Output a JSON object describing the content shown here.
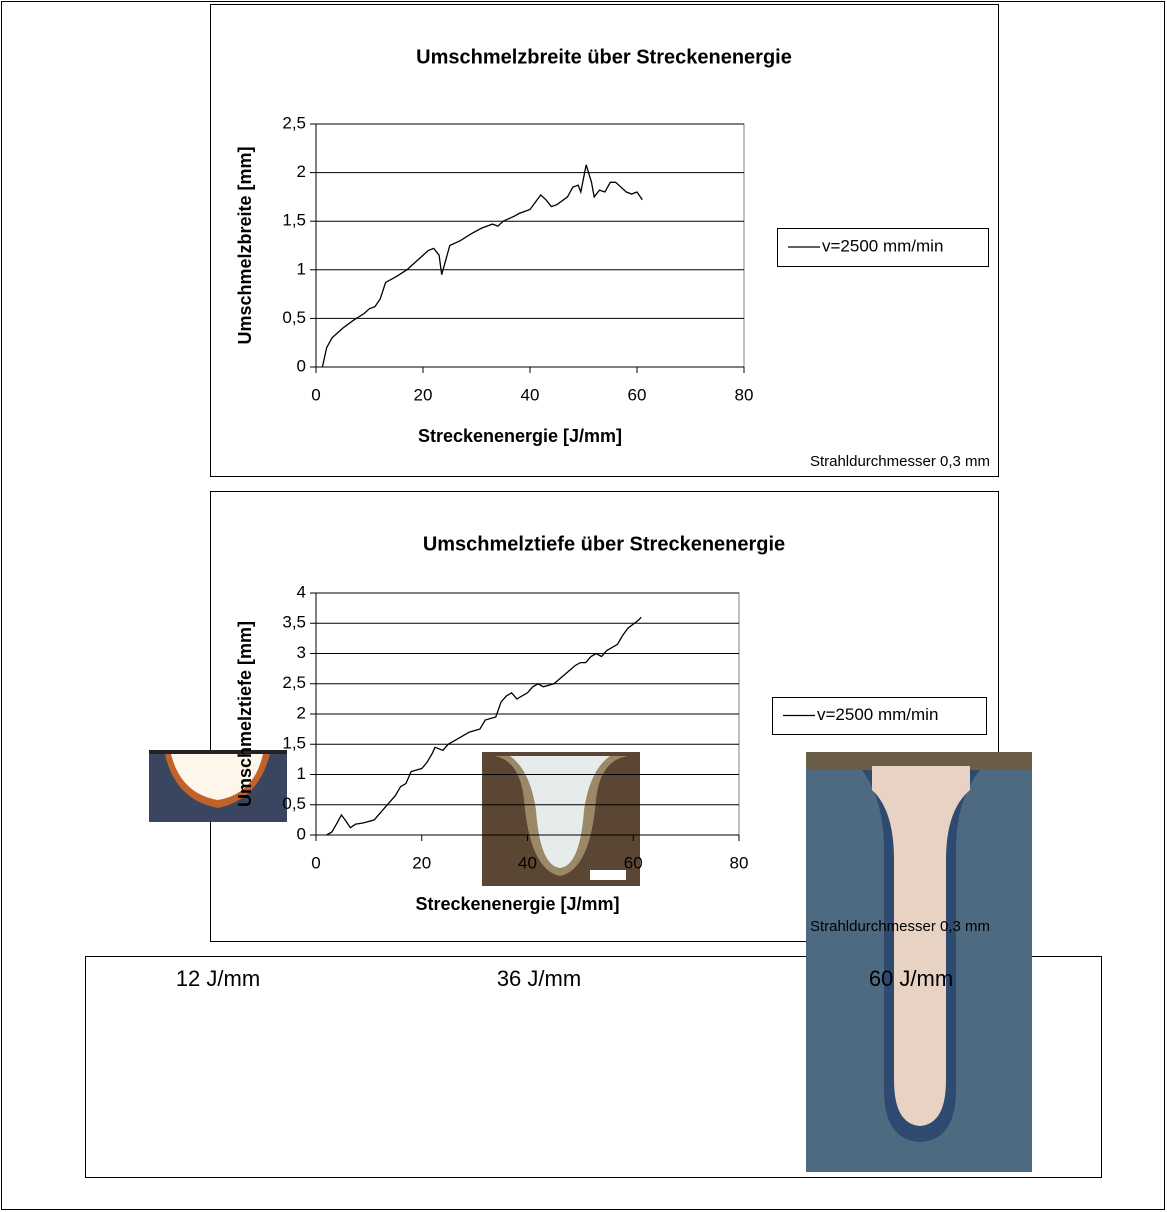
{
  "chart_data": [
    {
      "type": "line",
      "title": "Umschmelzbreite über Streckenenergie",
      "x_label": "Streckenenergie [J/mm]",
      "y_label": "Umschmelzbreite [mm]",
      "annotation": "Strahldurchmesser 0,3 mm",
      "xlim": [
        0,
        80
      ],
      "xticks": [
        0,
        20,
        40,
        60,
        80
      ],
      "ylim": [
        0,
        2.5
      ],
      "yticks": [
        0,
        {
          "value": 0.5,
          "label": "0,5"
        },
        1,
        {
          "value": 1.5,
          "label": "1,5"
        },
        2,
        {
          "value": 2.5,
          "label": "2,5"
        }
      ],
      "grid": true,
      "legend": "right",
      "series": [
        {
          "name": "v=2500 mm/min",
          "color": "#000000",
          "x": [
            1.2,
            2,
            3,
            4,
            5,
            7,
            9,
            10,
            11,
            12,
            13,
            15,
            17,
            19,
            21,
            22,
            23,
            23.5,
            24,
            25,
            27,
            29,
            31,
            33,
            34,
            35,
            37,
            38,
            40,
            42,
            43,
            44,
            45,
            47,
            48,
            49,
            49.5,
            50.5,
            51.5,
            52,
            53,
            54,
            55,
            56,
            57,
            58,
            59,
            60,
            61
          ],
          "values": [
            0,
            0.2,
            0.3,
            0.35,
            0.4,
            0.48,
            0.55,
            0.6,
            0.62,
            0.7,
            0.87,
            0.93,
            1.0,
            1.1,
            1.2,
            1.22,
            1.15,
            0.95,
            1.05,
            1.25,
            1.3,
            1.37,
            1.43,
            1.47,
            1.45,
            1.5,
            1.55,
            1.58,
            1.62,
            1.77,
            1.72,
            1.65,
            1.67,
            1.75,
            1.85,
            1.87,
            1.8,
            2.08,
            1.9,
            1.75,
            1.82,
            1.8,
            1.9,
            1.9,
            1.85,
            1.8,
            1.78,
            1.8,
            1.72
          ]
        }
      ]
    },
    {
      "type": "line",
      "title": "Umschmelztiefe über Streckenenergie",
      "x_label": "Streckenenergie [J/mm]",
      "y_label": "Umschmelztiefe [mm]",
      "annotation": "Strahldurchmesser 0,3 mm",
      "xlim": [
        0,
        80
      ],
      "xticks": [
        0,
        20,
        40,
        60,
        80
      ],
      "ylim": [
        0,
        4
      ],
      "yticks": [
        0,
        {
          "value": 0.5,
          "label": "0,5"
        },
        1,
        {
          "value": 1.5,
          "label": "1,5"
        },
        2,
        {
          "value": 2.5,
          "label": "2,5"
        },
        3,
        {
          "value": 3.5,
          "label": "3,5"
        },
        4
      ],
      "grid": true,
      "legend": "right",
      "series": [
        {
          "name": "v=2500 mm/min",
          "color": "#000000",
          "x": [
            2,
            3,
            4,
            4.8,
            5.5,
            6.5,
            7.5,
            9,
            11,
            13,
            15,
            16,
            17,
            18,
            20,
            21,
            22,
            22.5,
            24,
            25,
            27,
            29,
            31,
            32,
            34,
            35,
            36,
            37,
            38,
            40,
            41,
            42,
            43,
            45,
            47,
            49,
            50,
            51,
            52,
            53,
            54,
            55,
            57,
            58,
            59,
            61,
            61.5
          ],
          "values": [
            0,
            0.05,
            0.2,
            0.33,
            0.25,
            0.12,
            0.18,
            0.2,
            0.25,
            0.45,
            0.65,
            0.8,
            0.85,
            1.05,
            1.1,
            1.2,
            1.35,
            1.45,
            1.4,
            1.5,
            1.6,
            1.7,
            1.75,
            1.9,
            1.95,
            2.2,
            2.3,
            2.35,
            2.25,
            2.35,
            2.45,
            2.5,
            2.45,
            2.5,
            2.65,
            2.8,
            2.85,
            2.85,
            2.95,
            3.0,
            2.95,
            3.05,
            3.15,
            3.3,
            3.42,
            3.55,
            3.6
          ]
        }
      ]
    }
  ],
  "images": [
    {
      "label": "12 J/mm"
    },
    {
      "label": "36 J/mm"
    },
    {
      "label": "60 J/mm"
    }
  ]
}
